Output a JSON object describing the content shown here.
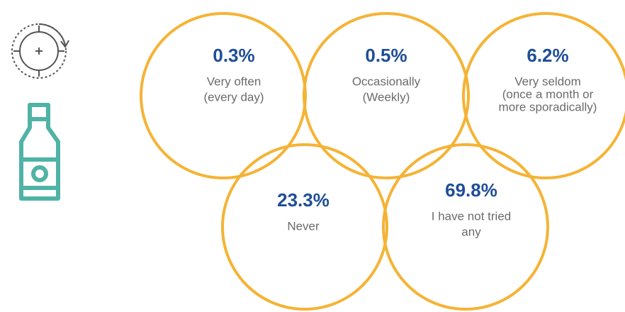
{
  "items": [
    {
      "value": "0.3%",
      "label": [
        "Very often",
        "(every day)"
      ]
    },
    {
      "value": "0.5%",
      "label": [
        "Occasionally",
        "(Weekly)"
      ]
    },
    {
      "value": "6.2%",
      "label": [
        "Very seldom",
        "(once a month or",
        "more sporadically)"
      ]
    },
    {
      "value": "23.3%",
      "label": [
        "Never"
      ]
    },
    {
      "value": "69.8%",
      "label": [
        "I have not tried",
        "any"
      ]
    }
  ]
}
